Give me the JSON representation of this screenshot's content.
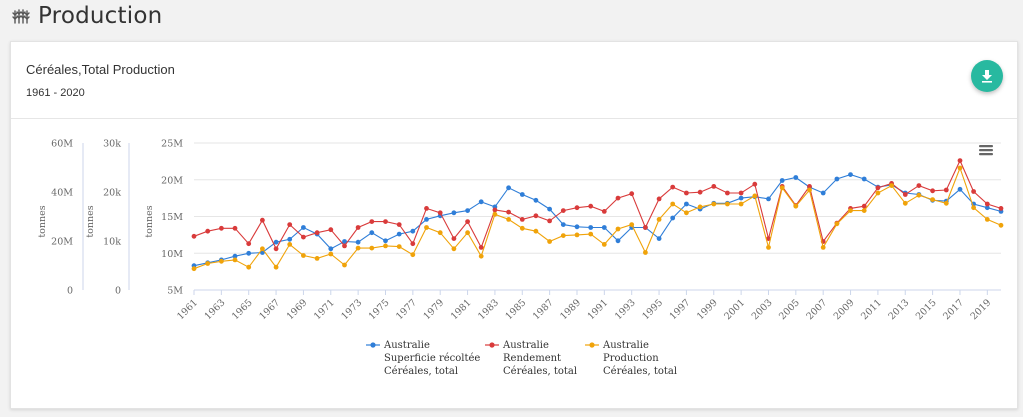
{
  "page": {
    "title": "Production",
    "icon": "wheat-icon"
  },
  "card": {
    "title": "Céréales,Total Production",
    "subtitle": "1961 - 2020",
    "download_icon": "download-icon",
    "menu_icon": "hamburger-menu-icon"
  },
  "chart_data": {
    "type": "line",
    "x": [
      1961,
      1962,
      1963,
      1964,
      1965,
      1966,
      1967,
      1968,
      1969,
      1970,
      1971,
      1972,
      1973,
      1974,
      1975,
      1976,
      1977,
      1978,
      1979,
      1980,
      1981,
      1982,
      1983,
      1984,
      1985,
      1986,
      1987,
      1988,
      1989,
      1990,
      1991,
      1992,
      1993,
      1994,
      1995,
      1996,
      1997,
      1998,
      1999,
      2000,
      2001,
      2002,
      2003,
      2004,
      2005,
      2006,
      2007,
      2008,
      2009,
      2010,
      2011,
      2012,
      2013,
      2014,
      2015,
      2016,
      2017,
      2018,
      2019,
      2020
    ],
    "x_tick_labels": [
      "1961",
      "1963",
      "1965",
      "1967",
      "1969",
      "1971",
      "1973",
      "1975",
      "1977",
      "1979",
      "1981",
      "1983",
      "1985",
      "1987",
      "1989",
      "1991",
      "1993",
      "1995",
      "1997",
      "1999",
      "2001",
      "2003",
      "2005",
      "2007",
      "2009",
      "2011",
      "2013",
      "2015",
      "2017",
      "2019"
    ],
    "y_axes": [
      {
        "id": "y0",
        "label": "tonnes",
        "min": 5000000,
        "max": 25000000,
        "ticks": [
          "5M",
          "10M",
          "15M",
          "20M",
          "25M"
        ]
      },
      {
        "id": "y1",
        "label": "tonnes",
        "min": 0,
        "max": 30000,
        "ticks": [
          "0",
          "10k",
          "20k",
          "30k"
        ]
      },
      {
        "id": "y2",
        "label": "tonnes",
        "min": 0,
        "max": 60000000,
        "ticks": [
          "0",
          "20M",
          "40M",
          "60M"
        ]
      }
    ],
    "grid": true,
    "legend_position": "bottom-center",
    "series": [
      {
        "legend": [
          "Australie",
          "Superficie récoltée",
          "Céréales, total"
        ],
        "color": "#2f7ed8",
        "axis": "y0",
        "values": [
          8.3,
          8.7,
          9.1,
          9.6,
          10.0,
          10.1,
          11.5,
          11.9,
          13.5,
          12.6,
          10.6,
          11.6,
          11.5,
          12.8,
          11.7,
          12.6,
          13.0,
          14.6,
          15.1,
          15.5,
          15.8,
          17.0,
          16.3,
          18.9,
          18.0,
          17.2,
          16.0,
          13.9,
          13.6,
          13.5,
          13.5,
          11.7,
          13.5,
          13.5,
          12.0,
          14.8,
          16.7,
          16.0,
          16.8,
          16.8,
          17.5,
          17.7,
          17.4,
          19.9,
          20.3,
          19.0,
          18.2,
          20.1,
          20.7,
          20.1,
          19.0,
          19.3,
          18.2,
          18.0,
          17.2,
          17.1,
          18.7,
          16.7,
          16.2,
          15.7
        ]
      },
      {
        "legend": [
          "Australie",
          "Rendement",
          "Céréales, total"
        ],
        "color": "#d93b3b",
        "axis": "y1",
        "values": [
          12.3,
          13.0,
          13.4,
          13.4,
          11.3,
          14.5,
          10.6,
          13.9,
          12.2,
          12.8,
          13.2,
          11.0,
          13.5,
          14.3,
          14.3,
          13.9,
          11.3,
          16.1,
          15.5,
          12.0,
          14.3,
          10.8,
          15.9,
          15.6,
          14.6,
          15.1,
          14.4,
          15.8,
          16.2,
          16.4,
          15.7,
          17.5,
          18.1,
          13.5,
          17.4,
          19.0,
          18.2,
          18.3,
          19.1,
          18.2,
          18.2,
          19.4,
          12.0,
          19.1,
          16.5,
          19.1,
          11.6,
          14.1,
          16.1,
          16.4,
          18.9,
          19.5,
          18.0,
          19.2,
          18.5,
          18.6,
          22.6,
          18.4,
          16.7,
          16.1
        ]
      },
      {
        "legend": [
          "Australie",
          "Production",
          "Céréales, total"
        ],
        "color": "#f0a30a",
        "axis": "y2",
        "values": [
          7.9,
          8.6,
          8.9,
          9.1,
          8.1,
          10.6,
          8.1,
          11.2,
          9.7,
          9.3,
          9.9,
          8.4,
          10.7,
          10.7,
          11.0,
          10.9,
          9.8,
          13.5,
          12.8,
          10.6,
          12.8,
          9.6,
          15.3,
          14.6,
          13.4,
          13.0,
          11.6,
          12.4,
          12.5,
          12.6,
          11.2,
          13.3,
          13.9,
          10.1,
          14.6,
          16.7,
          15.5,
          16.3,
          16.7,
          16.7,
          16.7,
          17.8,
          10.8,
          18.9,
          16.4,
          18.6,
          10.8,
          14.0,
          15.8,
          15.8,
          18.2,
          19.2,
          16.8,
          17.9,
          17.3,
          16.8,
          21.6,
          16.2,
          14.6,
          13.8
        ]
      }
    ]
  }
}
